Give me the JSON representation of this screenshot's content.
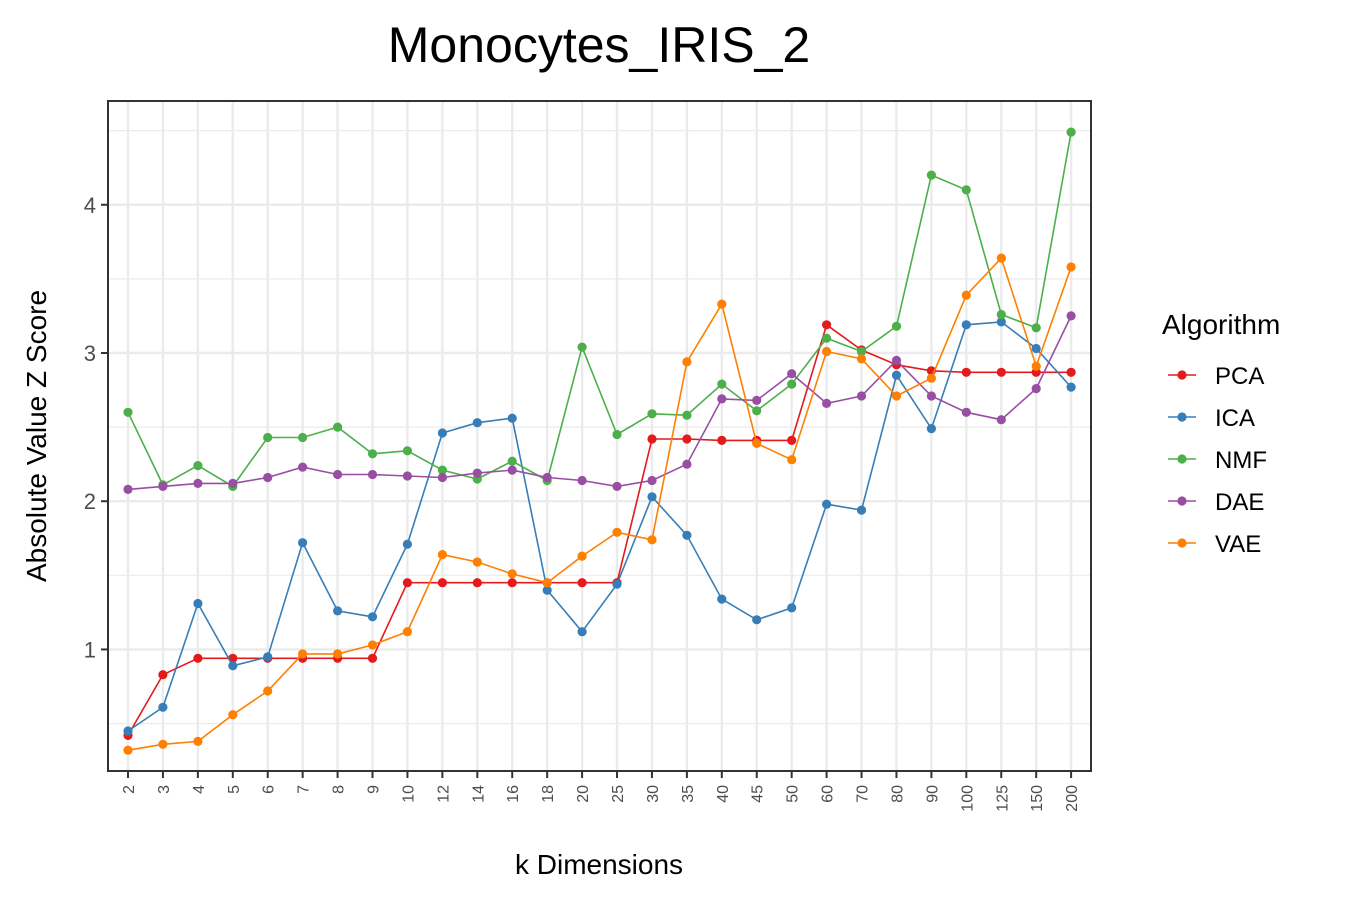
{
  "chart_data": {
    "type": "line",
    "title": "Monocytes_IRIS_2",
    "xlabel": "k Dimensions",
    "ylabel": "Absolute Value Z Score",
    "categories": [
      "2",
      "3",
      "4",
      "5",
      "6",
      "7",
      "8",
      "9",
      "10",
      "12",
      "14",
      "16",
      "18",
      "20",
      "25",
      "30",
      "35",
      "40",
      "45",
      "50",
      "60",
      "70",
      "80",
      "90",
      "100",
      "125",
      "150",
      "200"
    ],
    "ylim": [
      0.18,
      4.7
    ],
    "yticks": [
      1,
      2,
      3,
      4
    ],
    "grid": true,
    "legend": {
      "title": "Algorithm",
      "position": "right"
    },
    "series": [
      {
        "name": "PCA",
        "color": "#e41a1c",
        "values": [
          0.42,
          0.83,
          0.94,
          0.94,
          0.94,
          0.94,
          0.94,
          0.94,
          1.45,
          1.45,
          1.45,
          1.45,
          1.45,
          1.45,
          1.45,
          2.42,
          2.42,
          2.41,
          2.41,
          2.41,
          3.19,
          3.02,
          2.92,
          2.88,
          2.87,
          2.87,
          2.87,
          2.87
        ]
      },
      {
        "name": "ICA",
        "color": "#377eb8",
        "values": [
          0.45,
          0.61,
          1.31,
          0.89,
          0.95,
          1.72,
          1.26,
          1.22,
          1.71,
          2.46,
          2.53,
          2.56,
          1.4,
          1.12,
          1.44,
          2.03,
          1.77,
          1.34,
          1.2,
          1.28,
          1.98,
          1.94,
          2.85,
          2.49,
          3.19,
          3.21,
          3.03,
          2.77
        ]
      },
      {
        "name": "NMF",
        "color": "#4daf4a",
        "values": [
          2.6,
          2.11,
          2.24,
          2.1,
          2.43,
          2.43,
          2.5,
          2.32,
          2.34,
          2.21,
          2.15,
          2.27,
          2.14,
          3.04,
          2.45,
          2.59,
          2.58,
          2.79,
          2.61,
          2.79,
          3.1,
          3.01,
          3.18,
          4.2,
          4.1,
          3.26,
          3.17,
          4.49
        ]
      },
      {
        "name": "DAE",
        "color": "#984ea3",
        "values": [
          2.08,
          2.1,
          2.12,
          2.12,
          2.16,
          2.23,
          2.18,
          2.18,
          2.17,
          2.16,
          2.19,
          2.21,
          2.16,
          2.14,
          2.1,
          2.14,
          2.25,
          2.69,
          2.68,
          2.86,
          2.66,
          2.71,
          2.95,
          2.71,
          2.6,
          2.55,
          2.76,
          3.25
        ]
      },
      {
        "name": "VAE",
        "color": "#ff7f00",
        "values": [
          0.32,
          0.36,
          0.38,
          0.56,
          0.72,
          0.97,
          0.97,
          1.03,
          1.12,
          1.64,
          1.59,
          1.51,
          1.45,
          1.63,
          1.79,
          1.74,
          2.94,
          3.33,
          2.39,
          2.28,
          3.01,
          2.96,
          2.71,
          2.83,
          3.39,
          3.64,
          2.91,
          3.58
        ]
      }
    ]
  }
}
